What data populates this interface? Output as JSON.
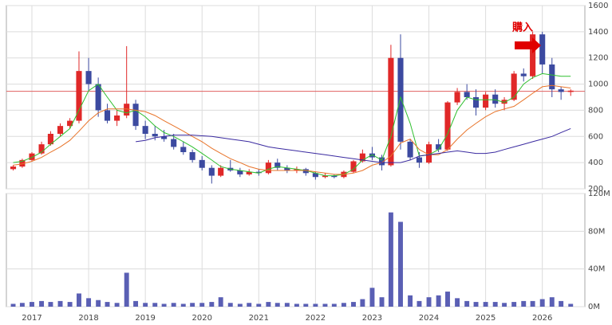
{
  "chart_data": [
    {
      "type": "candlestick",
      "annotation": "購入",
      "x": [
        2016.67,
        2016.83,
        2017,
        2017.17,
        2017.33,
        2017.5,
        2017.67,
        2017.83,
        2018,
        2018.17,
        2018.33,
        2018.5,
        2018.67,
        2018.83,
        2019,
        2019.17,
        2019.33,
        2019.5,
        2019.67,
        2019.83,
        2020,
        2020.17,
        2020.33,
        2020.5,
        2020.67,
        2020.83,
        2021,
        2021.17,
        2021.33,
        2021.5,
        2021.67,
        2021.83,
        2022,
        2022.17,
        2022.33,
        2022.5,
        2022.67,
        2022.83,
        2023,
        2023.17,
        2023.33,
        2023.5,
        2023.67,
        2023.83,
        2024,
        2024.17,
        2024.33,
        2024.5,
        2024.67,
        2024.83,
        2025,
        2025.17,
        2025.33,
        2025.5,
        2025.67,
        2025.83,
        2026,
        2026.17,
        2026.33,
        2026.5
      ],
      "open": [
        350,
        370,
        420,
        470,
        540,
        620,
        680,
        720,
        1100,
        1000,
        800,
        720,
        760,
        850,
        680,
        620,
        600,
        580,
        520,
        480,
        420,
        360,
        300,
        360,
        340,
        310,
        330,
        320,
        400,
        360,
        340,
        350,
        320,
        290,
        300,
        290,
        330,
        410,
        470,
        440,
        380,
        1200,
        560,
        440,
        400,
        540,
        500,
        860,
        940,
        900,
        820,
        920,
        850,
        880,
        1080,
        1060,
        1380,
        1150,
        960,
        940
      ],
      "high": [
        380,
        430,
        480,
        560,
        640,
        700,
        740,
        1250,
        1200,
        1050,
        850,
        800,
        1290,
        880,
        720,
        680,
        650,
        620,
        560,
        500,
        450,
        380,
        380,
        420,
        360,
        350,
        350,
        420,
        430,
        380,
        370,
        360,
        330,
        320,
        310,
        340,
        420,
        500,
        520,
        460,
        1300,
        1380,
        580,
        480,
        560,
        580,
        870,
        970,
        1000,
        960,
        940,
        960,
        900,
        1100,
        1120,
        1400,
        1400,
        1200,
        980,
        960
      ],
      "low": [
        340,
        360,
        410,
        460,
        530,
        600,
        660,
        700,
        950,
        750,
        700,
        680,
        740,
        650,
        580,
        570,
        560,
        500,
        460,
        400,
        340,
        240,
        290,
        330,
        290,
        300,
        300,
        310,
        340,
        320,
        320,
        300,
        270,
        280,
        280,
        280,
        320,
        400,
        420,
        340,
        370,
        500,
        420,
        360,
        390,
        480,
        490,
        840,
        880,
        760,
        800,
        820,
        800,
        870,
        1020,
        1040,
        1080,
        900,
        880,
        910
      ],
      "close": [
        370,
        420,
        470,
        540,
        620,
        680,
        720,
        1100,
        1000,
        800,
        720,
        760,
        850,
        680,
        620,
        600,
        580,
        520,
        480,
        420,
        360,
        300,
        360,
        340,
        310,
        330,
        320,
        400,
        360,
        340,
        350,
        320,
        290,
        300,
        290,
        330,
        410,
        470,
        440,
        380,
        1200,
        560,
        440,
        400,
        540,
        500,
        860,
        940,
        900,
        820,
        920,
        850,
        880,
        1080,
        1060,
        1380,
        1150,
        960,
        940,
        950
      ],
      "up_color": "#e02828",
      "down_color": "#3c4aa0",
      "reference_line": 945,
      "reference_color": "#e06060",
      "series": [
        {
          "color": "#2fbf2f",
          "values": [
            400,
            410,
            440,
            480,
            540,
            600,
            660,
            800,
            950,
            1000,
            900,
            800,
            780,
            800,
            750,
            680,
            630,
            600,
            560,
            520,
            470,
            420,
            370,
            350,
            340,
            330,
            320,
            350,
            370,
            360,
            350,
            340,
            320,
            300,
            300,
            310,
            350,
            420,
            460,
            420,
            600,
            900,
            700,
            450,
            460,
            500,
            620,
            800,
            900,
            880,
            880,
            880,
            860,
            900,
            1000,
            1050,
            1080,
            1070,
            1060,
            1060
          ]
        },
        {
          "color": "#e8742a",
          "values": [
            380,
            390,
            410,
            440,
            480,
            520,
            570,
            640,
            720,
            780,
            810,
            810,
            810,
            800,
            790,
            760,
            720,
            680,
            640,
            600,
            560,
            510,
            470,
            430,
            400,
            370,
            350,
            340,
            340,
            340,
            340,
            340,
            330,
            320,
            310,
            310,
            320,
            340,
            380,
            400,
            450,
            550,
            580,
            500,
            460,
            460,
            500,
            580,
            650,
            700,
            750,
            790,
            810,
            830,
            880,
            930,
            980,
            990,
            980,
            970
          ]
        },
        {
          "color": "#3a2aa0",
          "values": [
            null,
            null,
            null,
            null,
            null,
            null,
            null,
            null,
            null,
            null,
            null,
            null,
            null,
            560,
            570,
            590,
            600,
            610,
            610,
            610,
            605,
            600,
            590,
            580,
            570,
            560,
            540,
            520,
            510,
            500,
            490,
            480,
            470,
            460,
            450,
            440,
            430,
            420,
            410,
            400,
            400,
            400,
            420,
            450,
            460,
            470,
            480,
            490,
            480,
            470,
            470,
            480,
            500,
            520,
            540,
            560,
            580,
            600,
            630,
            660
          ]
        }
      ],
      "xlim": [
        2016.55,
        2026.75
      ],
      "xticks": [
        2017,
        2018,
        2019,
        2020,
        2021,
        2022,
        2023,
        2024,
        2025,
        2026
      ],
      "ylim": [
        200,
        1600
      ],
      "yticks": [
        200,
        400,
        600,
        800,
        1000,
        1200,
        1400,
        1600
      ],
      "grid": true
    },
    {
      "type": "bar",
      "x": [
        2016.67,
        2016.83,
        2017,
        2017.17,
        2017.33,
        2017.5,
        2017.67,
        2017.83,
        2018,
        2018.17,
        2018.33,
        2018.5,
        2018.67,
        2018.83,
        2019,
        2019.17,
        2019.33,
        2019.5,
        2019.67,
        2019.83,
        2020,
        2020.17,
        2020.33,
        2020.5,
        2020.67,
        2020.83,
        2021,
        2021.17,
        2021.33,
        2021.5,
        2021.67,
        2021.83,
        2022,
        2022.17,
        2022.33,
        2022.5,
        2022.67,
        2022.83,
        2023,
        2023.17,
        2023.33,
        2023.5,
        2023.67,
        2023.83,
        2024,
        2024.17,
        2024.33,
        2024.5,
        2024.67,
        2024.83,
        2025,
        2025.17,
        2025.33,
        2025.5,
        2025.67,
        2025.83,
        2026,
        2026.17,
        2026.33,
        2026.5
      ],
      "values": [
        3,
        4,
        5,
        6,
        5,
        6,
        5,
        14,
        9,
        7,
        5,
        4,
        36,
        6,
        4,
        4,
        3,
        4,
        3,
        4,
        4,
        5,
        10,
        4,
        3,
        4,
        3,
        5,
        4,
        4,
        3,
        3,
        3,
        3,
        3,
        4,
        5,
        8,
        20,
        10,
        100,
        90,
        12,
        6,
        10,
        12,
        16,
        9,
        6,
        5,
        5,
        5,
        4,
        5,
        6,
        6,
        8,
        10,
        6,
        3
      ],
      "color": "#5a5fb4",
      "xlim": [
        2016.55,
        2026.75
      ],
      "xticks": [
        2017,
        2018,
        2019,
        2020,
        2021,
        2022,
        2023,
        2024,
        2025,
        2026
      ],
      "ylim": [
        0,
        120
      ],
      "yticks": [
        {
          "value": 0,
          "label": "0M"
        },
        {
          "value": 40,
          "label": "40M"
        },
        {
          "value": 80,
          "label": "80M"
        },
        {
          "value": 120,
          "label": "120M"
        }
      ],
      "grid": true
    }
  ]
}
